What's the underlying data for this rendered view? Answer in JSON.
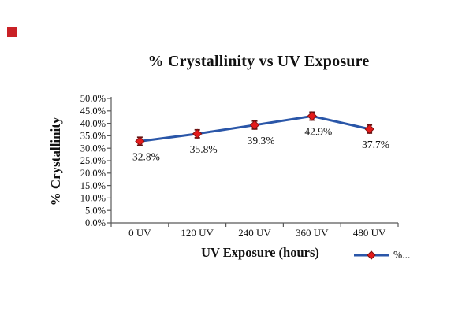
{
  "page": {
    "background_color": "#ffffff",
    "artifact_color": "#c92126"
  },
  "chart_data": {
    "type": "line",
    "title": "% Crystallinity vs UV Exposure",
    "xlabel": "UV Exposure (hours)",
    "ylabel": "% Crystallinity",
    "legend_label": "%...",
    "legend_position": "bottom-right",
    "grid": false,
    "categories": [
      "0 UV",
      "120 UV",
      "240 UV",
      "360 UV",
      "480 UV"
    ],
    "series": [
      {
        "name": "% Crystallinity",
        "values": [
          32.8,
          35.8,
          39.3,
          42.9,
          37.7
        ],
        "data_labels": [
          "32.8%",
          "35.8%",
          "39.3%",
          "42.9%",
          "37.7%"
        ],
        "error_bar_pct": 1.6,
        "line_color": "#2a56a8",
        "marker": "diamond",
        "marker_fill": "#e31b1b",
        "marker_stroke": "#7d0f0f",
        "error_bar_color": "#611212"
      }
    ],
    "ylim": [
      0,
      50
    ],
    "y_tick_step": 5,
    "y_tick_labels": [
      "0.0%",
      "5.0%",
      "10.0%",
      "15.0%",
      "20.0%",
      "25.0%",
      "30.0%",
      "35.0%",
      "40.0%",
      "45.0%",
      "50.0%"
    ],
    "axis_color": "#595959"
  }
}
